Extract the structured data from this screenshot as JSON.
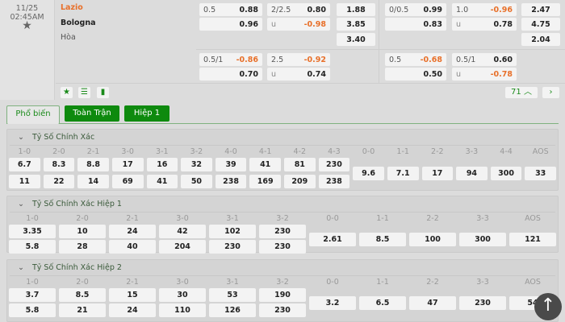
{
  "match": {
    "date": "11/25",
    "time": "02:45AM",
    "home": "Lazio",
    "away": "Bologna",
    "draw": "Hòa"
  },
  "odds_ft": [
    {
      "hdp": "0.5",
      "hdp_home": "0.88",
      "hdp_away": "0.96",
      "ou": "2/2.5",
      "ou_over": "0.80",
      "ou_under_label": "u",
      "ou_under": "-0.98",
      "x1": "1.88",
      "x2": "3.85",
      "xd": "3.40"
    },
    {
      "hdp": "0.5/1",
      "hdp_home": "-0.86",
      "hdp_away": "0.70",
      "ou": "2.5",
      "ou_over": "-0.92",
      "ou_under_label": "u",
      "ou_under": "0.74"
    }
  ],
  "odds_h1": [
    {
      "hdp": "0/0.5",
      "hdp_home": "0.99",
      "hdp_away": "0.83",
      "ou": "1.0",
      "ou_over": "-0.96",
      "ou_under_label": "u",
      "ou_under": "0.78",
      "x1": "2.47",
      "x2": "4.75",
      "xd": "2.04"
    },
    {
      "hdp": "0.5",
      "hdp_home": "-0.68",
      "hdp_away": "0.50",
      "ou": "0.5/1",
      "ou_over": "0.60",
      "ou_under_label": "u",
      "ou_under": "-0.78"
    }
  ],
  "toolbar": {
    "more_count": "71",
    "up_icon": "chevron-up-icon",
    "next_icon": "chevron-right-icon"
  },
  "tabs": [
    {
      "label": "Phổ biến",
      "active": true
    },
    {
      "label": "Toàn Trận"
    },
    {
      "label": "Hiệp 1"
    }
  ],
  "colors": {
    "accent": "#0e8a0e",
    "negative": "#e8702a"
  },
  "sections": [
    {
      "title": "Tỷ Số Chính Xác",
      "scores": [
        "1-0",
        "2-0",
        "2-1",
        "3-0",
        "3-1",
        "3-2",
        "4-0",
        "4-1",
        "4-2",
        "4-3"
      ],
      "home": [
        "6.7",
        "8.3",
        "8.8",
        "17",
        "16",
        "32",
        "39",
        "41",
        "81",
        "230"
      ],
      "away": [
        "11",
        "22",
        "14",
        "69",
        "41",
        "50",
        "238",
        "169",
        "209",
        "238"
      ],
      "draws": [
        "0-0",
        "1-1",
        "2-2",
        "3-3",
        "4-4",
        "AOS"
      ],
      "draw_odds": [
        "9.6",
        "7.1",
        "17",
        "94",
        "300",
        "33"
      ]
    },
    {
      "title": "Tỷ Số Chính Xác Hiệp 1",
      "scores": [
        "1-0",
        "2-0",
        "2-1",
        "3-0",
        "3-1",
        "3-2"
      ],
      "home": [
        "3.35",
        "10",
        "24",
        "42",
        "102",
        "230"
      ],
      "away": [
        "5.8",
        "28",
        "40",
        "204",
        "230",
        "230"
      ],
      "draws": [
        "0-0",
        "1-1",
        "2-2",
        "3-3",
        "AOS"
      ],
      "draw_odds": [
        "2.61",
        "8.5",
        "100",
        "300",
        "121"
      ]
    },
    {
      "title": "Tỷ Số Chính Xác Hiệp 2",
      "scores": [
        "1-0",
        "2-0",
        "2-1",
        "3-0",
        "3-1",
        "3-2"
      ],
      "home": [
        "3.7",
        "8.5",
        "15",
        "30",
        "53",
        "190"
      ],
      "away": [
        "5.8",
        "21",
        "24",
        "110",
        "126",
        "230"
      ],
      "draws": [
        "0-0",
        "1-1",
        "2-2",
        "3-3",
        "AOS"
      ],
      "draw_odds": [
        "3.2",
        "6.5",
        "47",
        "230",
        "54"
      ]
    }
  ]
}
